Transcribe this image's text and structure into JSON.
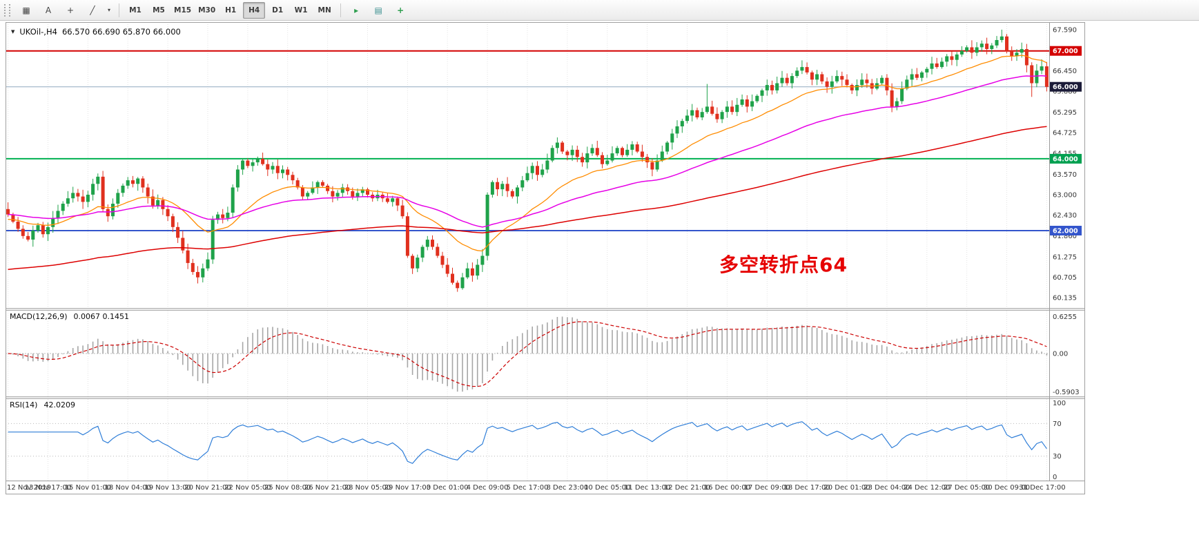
{
  "toolbar": {
    "left_tools": [
      {
        "name": "grid-tool",
        "glyph": "▦"
      },
      {
        "name": "text-label-tool",
        "glyph": "A"
      },
      {
        "name": "crosshair-tool",
        "glyph": "+"
      },
      {
        "name": "draw-tool",
        "glyph": "╱"
      },
      {
        "name": "draw-tool-dropdown",
        "glyph": "▾"
      }
    ],
    "timeframes": [
      "M1",
      "M5",
      "M15",
      "M30",
      "H1",
      "H4",
      "D1",
      "W1",
      "MN"
    ],
    "active_timeframe": "H4",
    "right_tools": [
      {
        "name": "play",
        "glyph": "▸",
        "color": "#2e9e4f"
      },
      {
        "name": "tile-windows",
        "glyph": "▤",
        "color": "#3a8f8f"
      },
      {
        "name": "add-indicator",
        "glyph": "+",
        "color": "#2e9e4f"
      }
    ]
  },
  "chart": {
    "header": {
      "symbol": "UKOil-,H4",
      "ohlc": "66.570 66.690 65.870 66.000"
    },
    "annotation": {
      "text": "多空转折点64",
      "color": "#e60000"
    },
    "levels": [
      {
        "price": 67.0,
        "label": "67.000",
        "line_color": "#d40000",
        "badge_color": "#d40000",
        "width": 2
      },
      {
        "price": 66.0,
        "label": "66.000",
        "line_color": "#8fa8bf",
        "badge_color": "#1b1b38",
        "width": 1
      },
      {
        "price": 64.0,
        "label": "64.000",
        "line_color": "#00b050",
        "badge_color": "#00a050",
        "width": 2
      },
      {
        "price": 62.0,
        "label": "62.000",
        "line_color": "#3355cc",
        "badge_color": "#3355cc",
        "width": 2
      }
    ],
    "axis_labels": [
      "67.590",
      "66.450",
      "65.880",
      "65.295",
      "64.725",
      "64.155",
      "63.570",
      "63.000",
      "62.430",
      "61.860",
      "61.275",
      "60.705",
      "60.135"
    ],
    "colors": {
      "up": "#1fa24a",
      "down": "#e0301e",
      "grid": "#e3e3e3",
      "axis_text": "#333333"
    }
  },
  "chart_data": {
    "type": "candlestick",
    "symbol": "UKOil",
    "timeframe": "H4",
    "ylim": [
      59.85,
      67.8
    ],
    "first_open": 62.6,
    "closes": [
      62.45,
      62.25,
      62.05,
      61.85,
      61.75,
      62.0,
      62.15,
      61.9,
      62.1,
      62.35,
      62.55,
      62.75,
      62.9,
      63.05,
      62.95,
      62.8,
      63.0,
      63.3,
      63.5,
      62.6,
      62.4,
      62.75,
      63.05,
      63.25,
      63.4,
      63.3,
      63.45,
      63.2,
      62.95,
      62.7,
      62.85,
      62.6,
      62.4,
      62.1,
      61.8,
      61.45,
      61.1,
      60.85,
      60.7,
      60.95,
      61.2,
      62.3,
      62.45,
      62.35,
      62.5,
      63.2,
      63.7,
      63.95,
      63.8,
      63.9,
      64.0,
      63.85,
      63.7,
      63.8,
      63.6,
      63.7,
      63.55,
      63.4,
      63.2,
      62.95,
      63.05,
      63.2,
      63.35,
      63.25,
      63.1,
      62.95,
      63.05,
      63.2,
      63.1,
      62.95,
      63.05,
      63.15,
      63.0,
      62.9,
      63.0,
      62.9,
      62.8,
      62.9,
      62.7,
      62.4,
      61.3,
      60.95,
      61.25,
      61.55,
      61.75,
      61.55,
      61.3,
      61.05,
      60.8,
      60.55,
      60.4,
      60.7,
      60.95,
      60.75,
      61.05,
      61.3,
      63.0,
      63.35,
      63.15,
      63.3,
      63.1,
      62.95,
      63.2,
      63.4,
      63.6,
      63.8,
      63.55,
      63.7,
      63.95,
      64.3,
      64.45,
      64.2,
      64.1,
      64.25,
      64.05,
      63.9,
      64.15,
      64.3,
      64.1,
      63.85,
      63.95,
      64.15,
      64.3,
      64.1,
      64.25,
      64.4,
      64.2,
      64.05,
      63.9,
      63.7,
      63.95,
      64.2,
      64.45,
      64.7,
      64.9,
      65.05,
      65.2,
      65.35,
      65.15,
      65.3,
      65.45,
      65.25,
      65.1,
      65.3,
      65.45,
      65.3,
      65.5,
      65.65,
      65.45,
      65.6,
      65.75,
      65.9,
      66.05,
      65.9,
      66.1,
      66.25,
      66.1,
      66.3,
      66.45,
      66.55,
      66.4,
      66.2,
      66.35,
      66.15,
      66.0,
      66.15,
      66.3,
      66.2,
      66.05,
      65.9,
      66.05,
      66.2,
      66.1,
      65.95,
      66.1,
      66.25,
      65.9,
      65.45,
      65.6,
      65.95,
      66.2,
      66.35,
      66.25,
      66.4,
      66.5,
      66.65,
      66.55,
      66.7,
      66.85,
      66.75,
      66.9,
      67.0,
      67.1,
      66.95,
      67.1,
      67.2,
      67.05,
      67.15,
      67.3,
      67.4,
      67.0,
      66.85,
      66.95,
      67.05,
      66.6,
      66.1,
      66.45,
      66.57,
      66.0
    ],
    "spike_highs": {
      "140": 66.08,
      "199": 67.59
    },
    "spike_lows": {
      "90": 60.3,
      "205": 65.72
    },
    "last_candle": [
      66.57,
      66.69,
      65.87,
      66.0
    ],
    "moving_averages": [
      {
        "name": "ma-fast",
        "period": 21,
        "seed": 62.3,
        "color": "#ff8c00",
        "width": 1.3
      },
      {
        "name": "ma-medium",
        "period": 56,
        "seed": 62.45,
        "color": "#e600e6",
        "width": 1.5
      },
      {
        "name": "ma-slow",
        "period": 160,
        "seed": 60.9,
        "color": "#dd0000",
        "width": 1.5
      }
    ],
    "x_ticks": {
      "indices": [
        0,
        8,
        16,
        24,
        32,
        40,
        48,
        56,
        64,
        72,
        80,
        88,
        96,
        104,
        112,
        120,
        128,
        136,
        144,
        152,
        160,
        168,
        176,
        184,
        192,
        200,
        208
      ],
      "labels": [
        "12 Nov 2019",
        "13 Nov 17:00",
        "15 Nov 01:00",
        "18 Nov 04:00",
        "19 Nov 13:00",
        "20 Nov 21:00",
        "22 Nov 05:00",
        "25 Nov 08:00",
        "26 Nov 21:00",
        "28 Nov 05:00",
        "29 Nov 17:00",
        "3 Dec 01:00",
        "4 Dec 09:00",
        "5 Dec 17:00",
        "8 Dec 23:00",
        "10 Dec 05:00",
        "11 Dec 13:00",
        "12 Dec 21:00",
        "16 Dec 00:00",
        "17 Dec 09:00",
        "18 Dec 17:00",
        "20 Dec 01:00",
        "23 Dec 04:00",
        "24 Dec 12:00",
        "27 Dec 05:00",
        "30 Dec 09:00",
        "31 Dec 17:00"
      ]
    }
  },
  "macd": {
    "label": "MACD(12,26,9)",
    "values": "0.0067 0.1451",
    "fast": 12,
    "slow": 26,
    "signal": 9,
    "axis_labels": [
      "0.6255",
      "0.00",
      "-0.5903"
    ],
    "colors": {
      "histogram": "#a6a6a6",
      "signal": "#cc0000"
    }
  },
  "rsi": {
    "label": "RSI(14)",
    "value": "42.0209",
    "period": 14,
    "levels": [
      70,
      30
    ],
    "axis_labels": [
      "100",
      "70",
      "30",
      "0"
    ],
    "color": "#2f7ed8"
  }
}
